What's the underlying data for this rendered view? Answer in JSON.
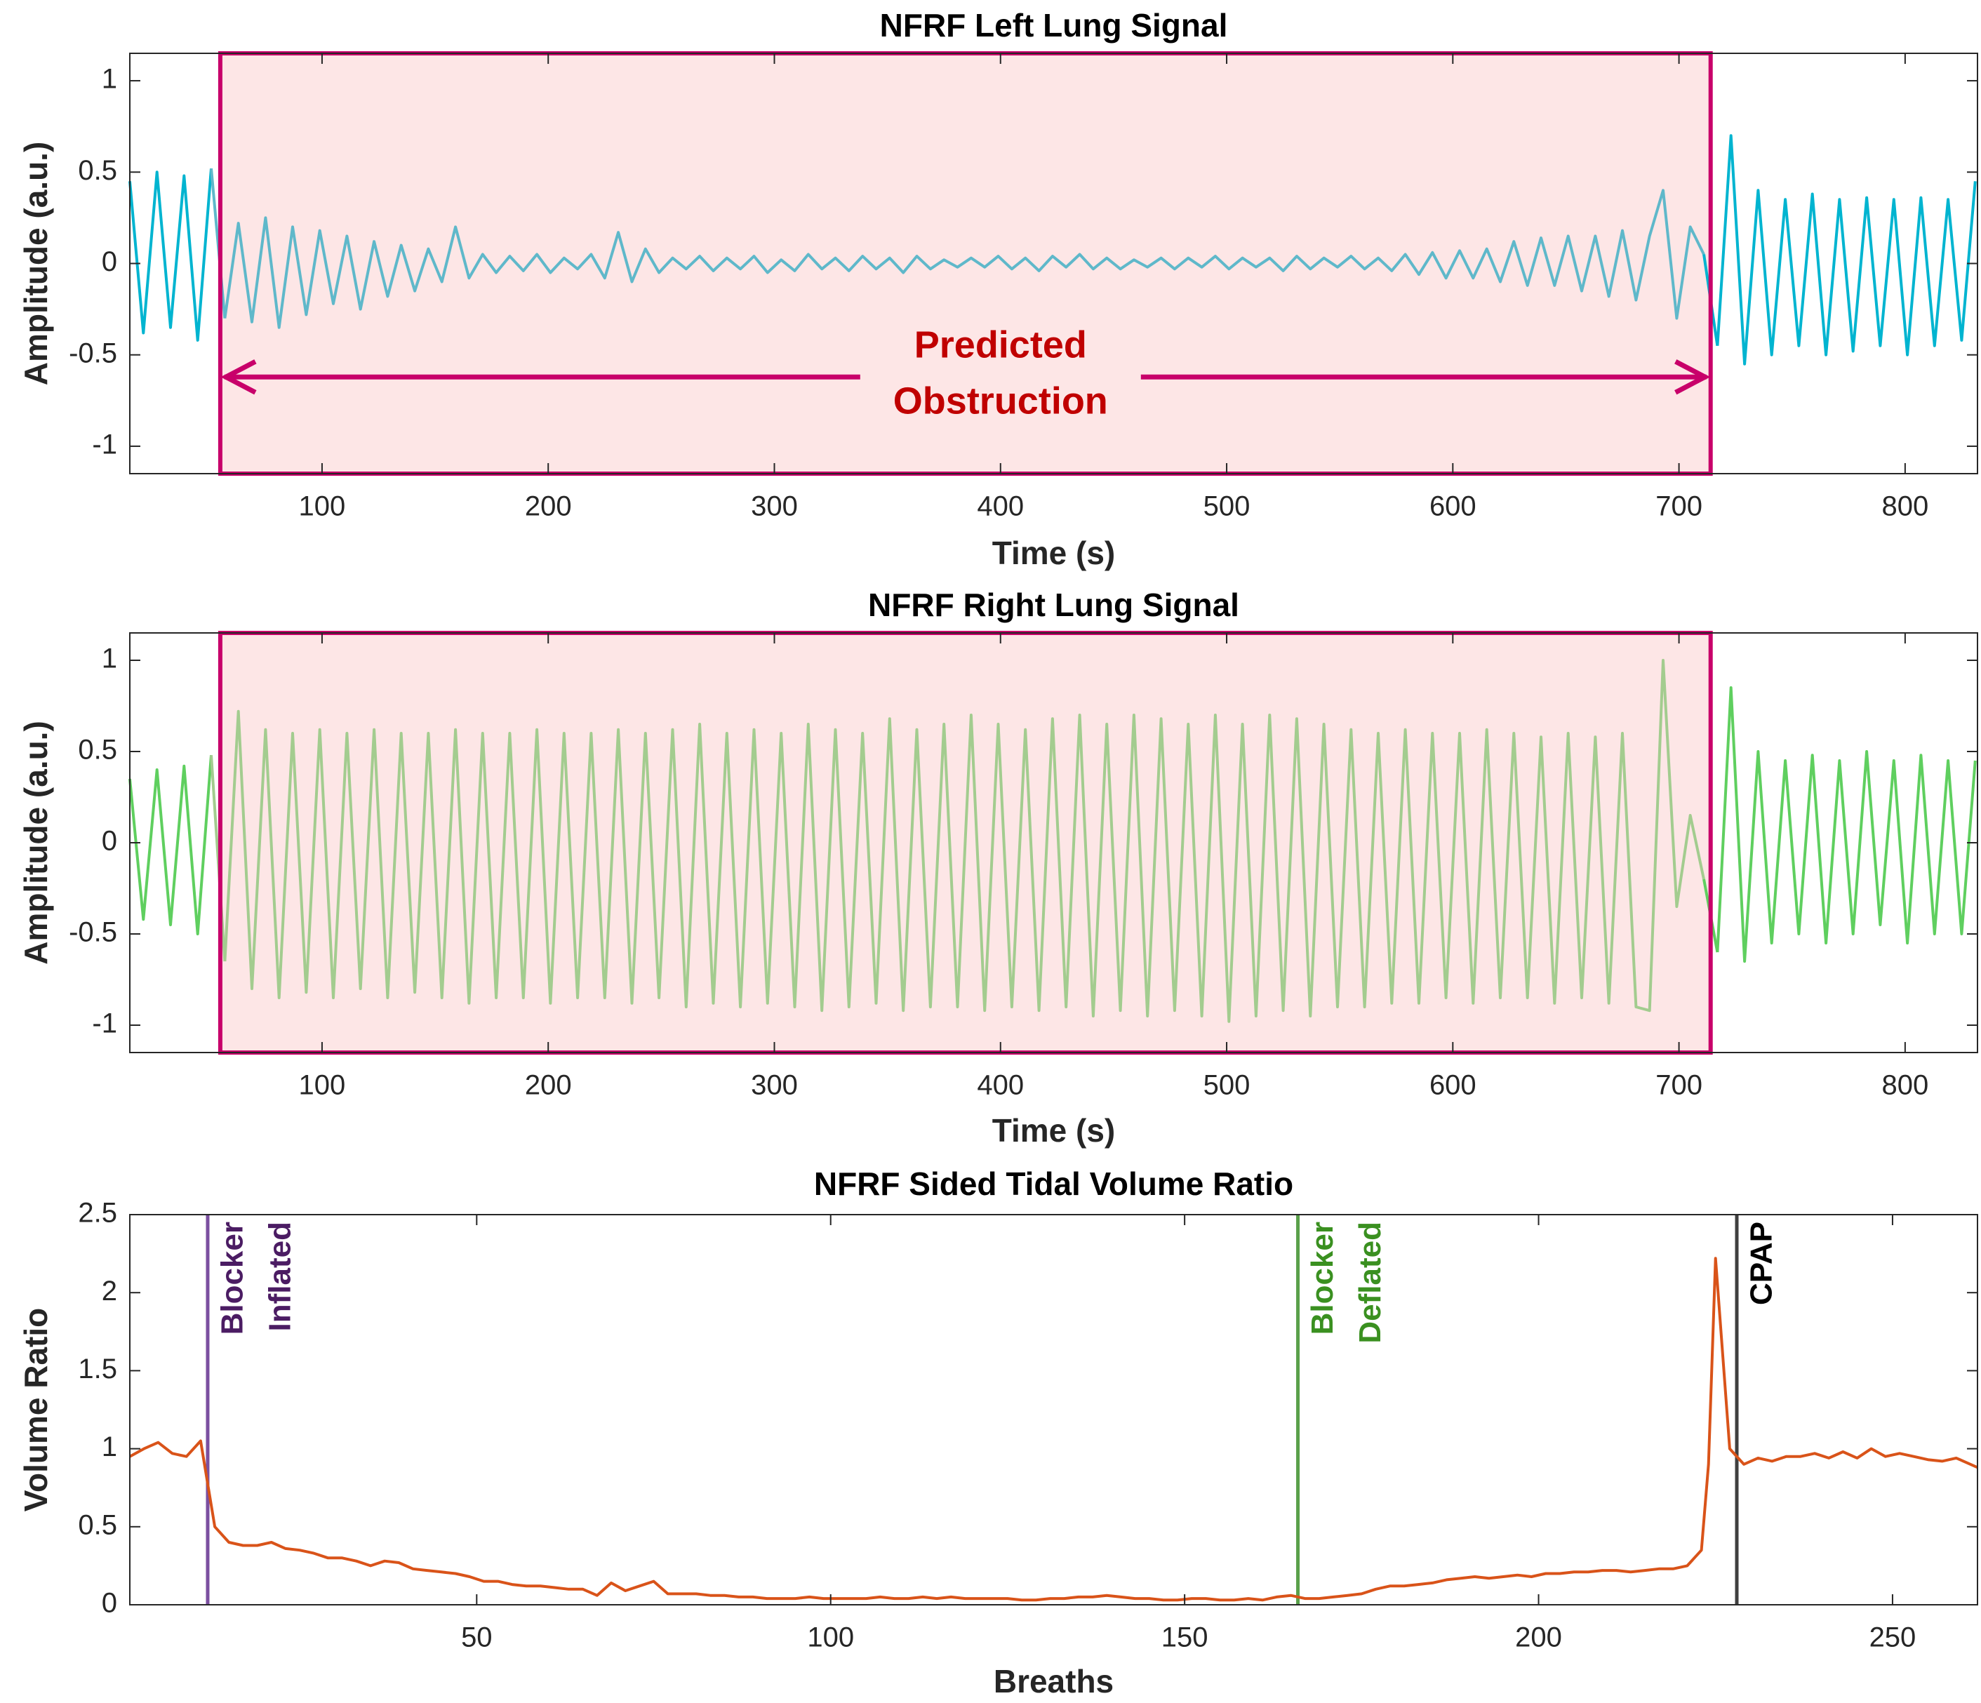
{
  "chart_data": [
    {
      "type": "line",
      "title": "NFRF Left Lung Signal",
      "xlabel": "Time (s)",
      "ylabel": "Amplitude (a.u.)",
      "xlim": [
        15,
        832
      ],
      "xticks": [
        100,
        200,
        300,
        400,
        500,
        600,
        700,
        800
      ],
      "ylim": [
        -1.15,
        1.15
      ],
      "yticks": [
        -1,
        -0.5,
        0,
        0.5,
        1
      ],
      "color": "#00b4d0",
      "highlight_color": "#5fb8ca",
      "highlight": {
        "x": [
          55,
          714
        ],
        "fill": "#fde6e6",
        "edge": "#c8006a"
      },
      "annotation_lines": [
        "Predicted",
        "Obstruction"
      ],
      "x": [
        15,
        21,
        27,
        33,
        39,
        45,
        51,
        57,
        63,
        69,
        75,
        81,
        87,
        93,
        99,
        105,
        111,
        117,
        123,
        129,
        135,
        141,
        147,
        153,
        159,
        165,
        171,
        177,
        183,
        189,
        195,
        201,
        207,
        213,
        219,
        225,
        231,
        237,
        243,
        249,
        255,
        261,
        267,
        273,
        279,
        285,
        291,
        297,
        303,
        309,
        315,
        321,
        327,
        333,
        339,
        345,
        351,
        357,
        363,
        369,
        375,
        381,
        387,
        393,
        399,
        405,
        411,
        417,
        423,
        429,
        435,
        441,
        447,
        453,
        459,
        465,
        471,
        477,
        483,
        489,
        495,
        501,
        507,
        513,
        519,
        525,
        531,
        537,
        543,
        549,
        555,
        561,
        567,
        573,
        579,
        585,
        591,
        597,
        603,
        609,
        615,
        621,
        627,
        633,
        639,
        645,
        651,
        657,
        663,
        669,
        675,
        681,
        687,
        693,
        699,
        705,
        711,
        717,
        723,
        729,
        735,
        741,
        747,
        753,
        759,
        765,
        771,
        777,
        783,
        789,
        795,
        801,
        807,
        813,
        819,
        825,
        831
      ],
      "values": [
        0.45,
        -0.38,
        0.5,
        -0.35,
        0.48,
        -0.42,
        0.52,
        -0.3,
        0.22,
        -0.32,
        0.25,
        -0.35,
        0.2,
        -0.28,
        0.18,
        -0.22,
        0.15,
        -0.25,
        0.12,
        -0.18,
        0.1,
        -0.15,
        0.08,
        -0.1,
        0.2,
        -0.08,
        0.05,
        -0.05,
        0.04,
        -0.04,
        0.05,
        -0.05,
        0.03,
        -0.03,
        0.05,
        -0.08,
        0.17,
        -0.1,
        0.08,
        -0.05,
        0.03,
        -0.03,
        0.04,
        -0.04,
        0.03,
        -0.03,
        0.04,
        -0.05,
        0.02,
        -0.04,
        0.05,
        -0.03,
        0.03,
        -0.04,
        0.04,
        -0.03,
        0.03,
        -0.05,
        0.04,
        -0.03,
        0.02,
        -0.02,
        0.03,
        -0.02,
        0.04,
        -0.03,
        0.03,
        -0.04,
        0.04,
        -0.02,
        0.05,
        -0.03,
        0.03,
        -0.03,
        0.02,
        -0.02,
        0.03,
        -0.03,
        0.03,
        -0.02,
        0.04,
        -0.03,
        0.03,
        -0.02,
        0.03,
        -0.04,
        0.04,
        -0.03,
        0.03,
        -0.02,
        0.04,
        -0.03,
        0.03,
        -0.04,
        0.05,
        -0.06,
        0.06,
        -0.08,
        0.07,
        -0.08,
        0.08,
        -0.1,
        0.12,
        -0.12,
        0.14,
        -0.12,
        0.15,
        -0.15,
        0.15,
        -0.18,
        0.18,
        -0.2,
        0.15,
        0.4,
        -0.3,
        0.2,
        0.05,
        -0.45,
        0.7,
        -0.55,
        0.4,
        -0.5,
        0.35,
        -0.45,
        0.38,
        -0.5,
        0.35,
        -0.48,
        0.36,
        -0.45,
        0.35,
        -0.5,
        0.36,
        -0.45,
        0.35,
        -0.42,
        0.45
      ]
    },
    {
      "type": "line",
      "title": "NFRF Right Lung Signal",
      "xlabel": "Time (s)",
      "ylabel": "Amplitude (a.u.)",
      "xlim": [
        15,
        832
      ],
      "xticks": [
        100,
        200,
        300,
        400,
        500,
        600,
        700,
        800
      ],
      "ylim": [
        -1.15,
        1.15
      ],
      "yticks": [
        -1,
        -0.5,
        0,
        0.5,
        1
      ],
      "color": "#5fcf5f",
      "highlight_color": "#a3cc8f",
      "highlight": {
        "x": [
          55,
          714
        ],
        "fill": "#fde6e6",
        "edge": "#c8006a"
      },
      "x": [
        15,
        21,
        27,
        33,
        39,
        45,
        51,
        57,
        63,
        69,
        75,
        81,
        87,
        93,
        99,
        105,
        111,
        117,
        123,
        129,
        135,
        141,
        147,
        153,
        159,
        165,
        171,
        177,
        183,
        189,
        195,
        201,
        207,
        213,
        219,
        225,
        231,
        237,
        243,
        249,
        255,
        261,
        267,
        273,
        279,
        285,
        291,
        297,
        303,
        309,
        315,
        321,
        327,
        333,
        339,
        345,
        351,
        357,
        363,
        369,
        375,
        381,
        387,
        393,
        399,
        405,
        411,
        417,
        423,
        429,
        435,
        441,
        447,
        453,
        459,
        465,
        471,
        477,
        483,
        489,
        495,
        501,
        507,
        513,
        519,
        525,
        531,
        537,
        543,
        549,
        555,
        561,
        567,
        573,
        579,
        585,
        591,
        597,
        603,
        609,
        615,
        621,
        627,
        633,
        639,
        645,
        651,
        657,
        663,
        669,
        675,
        681,
        687,
        693,
        699,
        705,
        711,
        717,
        723,
        729,
        735,
        741,
        747,
        753,
        759,
        765,
        771,
        777,
        783,
        789,
        795,
        801,
        807,
        813,
        819,
        825,
        831
      ],
      "values": [
        0.35,
        -0.42,
        0.4,
        -0.45,
        0.42,
        -0.5,
        0.48,
        -0.65,
        0.72,
        -0.8,
        0.62,
        -0.85,
        0.6,
        -0.82,
        0.62,
        -0.85,
        0.6,
        -0.8,
        0.62,
        -0.85,
        0.6,
        -0.82,
        0.6,
        -0.85,
        0.62,
        -0.88,
        0.6,
        -0.85,
        0.6,
        -0.85,
        0.62,
        -0.88,
        0.6,
        -0.85,
        0.6,
        -0.85,
        0.62,
        -0.88,
        0.6,
        -0.85,
        0.62,
        -0.9,
        0.65,
        -0.88,
        0.6,
        -0.9,
        0.62,
        -0.88,
        0.6,
        -0.9,
        0.65,
        -0.92,
        0.62,
        -0.9,
        0.6,
        -0.88,
        0.68,
        -0.92,
        0.62,
        -0.9,
        0.65,
        -0.9,
        0.7,
        -0.92,
        0.65,
        -0.9,
        0.62,
        -0.92,
        0.68,
        -0.9,
        0.7,
        -0.95,
        0.65,
        -0.92,
        0.7,
        -0.95,
        0.68,
        -0.92,
        0.65,
        -0.95,
        0.7,
        -0.98,
        0.65,
        -0.95,
        0.7,
        -0.92,
        0.68,
        -0.95,
        0.65,
        -0.9,
        0.62,
        -0.9,
        0.6,
        -0.88,
        0.62,
        -0.88,
        0.6,
        -0.85,
        0.6,
        -0.88,
        0.62,
        -0.85,
        0.6,
        -0.85,
        0.58,
        -0.88,
        0.6,
        -0.85,
        0.58,
        -0.88,
        0.6,
        -0.9,
        -0.92,
        1.0,
        -0.35,
        0.15,
        -0.2,
        -0.6,
        0.85,
        -0.65,
        0.5,
        -0.55,
        0.45,
        -0.5,
        0.48,
        -0.55,
        0.45,
        -0.5,
        0.5,
        -0.45,
        0.45,
        -0.55,
        0.48,
        -0.5,
        0.45,
        -0.5,
        0.45
      ]
    },
    {
      "type": "line",
      "title": "NFRF Sided Tidal Volume Ratio",
      "xlabel": "Breaths",
      "ylabel": "Volume Ratio",
      "xlim": [
        1,
        262
      ],
      "xticks": [
        50,
        100,
        150,
        200,
        250
      ],
      "ylim": [
        0,
        2.5
      ],
      "yticks": [
        0,
        0.5,
        1,
        1.5,
        2,
        2.5
      ],
      "color": "#d95319",
      "events": [
        {
          "x": 12,
          "label": [
            "Blocker",
            "Inflated"
          ],
          "color": "#7b4fa0",
          "text_color": "#4b1c63"
        },
        {
          "x": 166,
          "label": [
            "Blocker",
            "Deflated"
          ],
          "color": "#5aa04a",
          "text_color": "#3a9020"
        },
        {
          "x": 228,
          "label": [
            "CPAP"
          ],
          "color": "#404040",
          "text_color": "#000000"
        }
      ],
      "x": [
        1,
        3,
        5,
        7,
        9,
        11,
        13,
        15,
        17,
        19,
        21,
        23,
        25,
        27,
        29,
        31,
        33,
        35,
        37,
        39,
        41,
        43,
        45,
        47,
        49,
        51,
        53,
        55,
        57,
        59,
        61,
        63,
        65,
        67,
        69,
        71,
        73,
        75,
        77,
        79,
        81,
        83,
        85,
        87,
        89,
        91,
        93,
        95,
        97,
        99,
        101,
        103,
        105,
        107,
        109,
        111,
        113,
        115,
        117,
        119,
        121,
        123,
        125,
        127,
        129,
        131,
        133,
        135,
        137,
        139,
        141,
        143,
        145,
        147,
        149,
        151,
        153,
        155,
        157,
        159,
        161,
        163,
        165,
        167,
        169,
        171,
        173,
        175,
        177,
        179,
        181,
        183,
        185,
        187,
        189,
        191,
        193,
        195,
        197,
        199,
        201,
        203,
        205,
        207,
        209,
        211,
        213,
        215,
        217,
        219,
        221,
        223,
        224,
        225,
        227,
        229,
        231,
        233,
        235,
        237,
        239,
        241,
        243,
        245,
        247,
        249,
        251,
        253,
        255,
        257,
        259,
        261,
        262
      ],
      "values": [
        0.95,
        1.0,
        1.04,
        0.97,
        0.95,
        1.05,
        0.5,
        0.4,
        0.38,
        0.38,
        0.4,
        0.36,
        0.35,
        0.33,
        0.3,
        0.3,
        0.28,
        0.25,
        0.28,
        0.27,
        0.23,
        0.22,
        0.21,
        0.2,
        0.18,
        0.15,
        0.15,
        0.13,
        0.12,
        0.12,
        0.11,
        0.1,
        0.1,
        0.06,
        0.14,
        0.09,
        0.12,
        0.15,
        0.07,
        0.07,
        0.07,
        0.06,
        0.06,
        0.05,
        0.05,
        0.04,
        0.04,
        0.04,
        0.05,
        0.04,
        0.04,
        0.04,
        0.04,
        0.05,
        0.04,
        0.04,
        0.05,
        0.04,
        0.05,
        0.04,
        0.04,
        0.04,
        0.04,
        0.03,
        0.03,
        0.04,
        0.04,
        0.05,
        0.05,
        0.06,
        0.05,
        0.04,
        0.04,
        0.03,
        0.03,
        0.04,
        0.04,
        0.03,
        0.03,
        0.04,
        0.03,
        0.05,
        0.06,
        0.04,
        0.04,
        0.05,
        0.06,
        0.07,
        0.1,
        0.12,
        0.12,
        0.13,
        0.14,
        0.16,
        0.17,
        0.18,
        0.17,
        0.18,
        0.19,
        0.18,
        0.2,
        0.2,
        0.21,
        0.21,
        0.22,
        0.22,
        0.21,
        0.22,
        0.23,
        0.23,
        0.25,
        0.35,
        0.9,
        2.22,
        1.0,
        0.9,
        0.94,
        0.92,
        0.95,
        0.95,
        0.97,
        0.94,
        0.98,
        0.94,
        1.0,
        0.95,
        0.97,
        0.95,
        0.93,
        0.92,
        0.94,
        0.9,
        0.88
      ]
    }
  ]
}
